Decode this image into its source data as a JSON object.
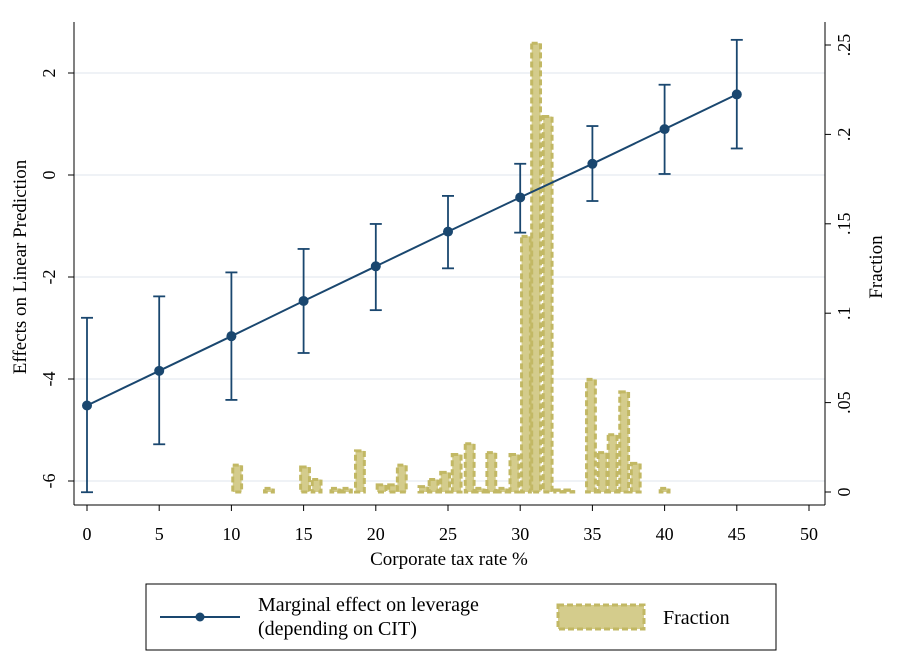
{
  "colors": {
    "line": "#1a476f",
    "bar_fill": "#d4cc8c",
    "bar_stroke": "#c2b864",
    "grid": "#e5ebf0",
    "axis": "#000000"
  },
  "chart_data": {
    "type": "line",
    "xlabel": "Corporate tax rate %",
    "ylabel_left": "Effects on Linear Prediction",
    "ylabel_right": "Fraction",
    "xlim": [
      0,
      50
    ],
    "ylim_left": [
      -6.25,
      2.8
    ],
    "ylim_right": [
      0,
      0.26
    ],
    "x_ticks": [
      0,
      5,
      10,
      15,
      20,
      25,
      30,
      35,
      40,
      45,
      50
    ],
    "x_tick_labels": [
      "0",
      "5",
      "10",
      "15",
      "20",
      "25",
      "30",
      "35",
      "40",
      "45",
      "50"
    ],
    "y_left_ticks": [
      -6,
      -4,
      -2,
      0,
      2
    ],
    "y_left_tick_labels": [
      "-6",
      "-4",
      "-2",
      "0",
      "2"
    ],
    "y_right_ticks": [
      0,
      0.05,
      0.1,
      0.15,
      0.2,
      0.25
    ],
    "y_right_tick_labels": [
      "0",
      ".05",
      ".1",
      ".15",
      ".2",
      ".25"
    ],
    "grid": true,
    "legend_position": "bottom",
    "series": [
      {
        "name": "Marginal effect on leverage (depending on CIT)",
        "legend_lines": [
          "Marginal effect on leverage",
          "(depending on CIT)"
        ],
        "kind": "line_with_ci",
        "axis": "left",
        "x": [
          0,
          5,
          10,
          15,
          20,
          25,
          30,
          35,
          40,
          45
        ],
        "y": [
          -4.52,
          -3.84,
          -3.16,
          -2.47,
          -1.79,
          -1.11,
          -0.44,
          0.22,
          0.9,
          1.58
        ],
        "ci_low": [
          -6.22,
          -5.28,
          -4.41,
          -3.49,
          -2.65,
          -1.83,
          -1.13,
          -0.51,
          0.02,
          0.52
        ],
        "ci_high": [
          -2.8,
          -2.38,
          -1.91,
          -1.45,
          -0.96,
          -0.41,
          0.22,
          0.96,
          1.77,
          2.65
        ]
      },
      {
        "name": "Fraction",
        "legend_lines": [
          "Fraction"
        ],
        "kind": "histogram",
        "axis": "right",
        "bin_width": 0.75,
        "x": [
          10.4,
          12.6,
          15.1,
          15.9,
          17.2,
          18,
          18.9,
          20.4,
          21.2,
          21.8,
          23.3,
          24,
          24.8,
          25.6,
          26.5,
          27.2,
          28,
          28.8,
          29.6,
          30.4,
          31.1,
          31.9,
          32.7,
          33.4,
          34.9,
          35.7,
          36.4,
          37.2,
          38,
          40
        ],
        "values": [
          0.015,
          0.002,
          0.014,
          0.007,
          0.002,
          0.002,
          0.023,
          0.004,
          0.004,
          0.015,
          0.003,
          0.007,
          0.011,
          0.021,
          0.027,
          0.002,
          0.022,
          0.002,
          0.021,
          0.143,
          0.251,
          0.21,
          0.001,
          0.001,
          0.063,
          0.022,
          0.032,
          0.056,
          0.016,
          0.002
        ]
      }
    ]
  }
}
